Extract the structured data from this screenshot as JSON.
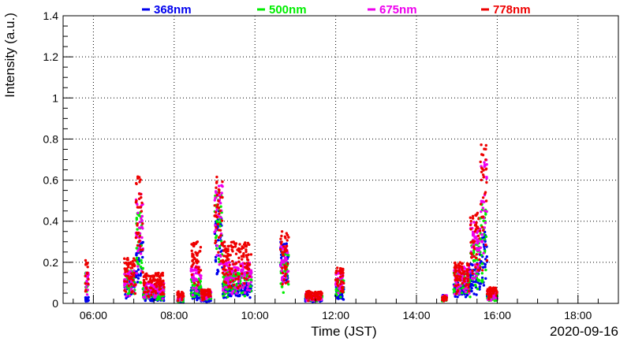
{
  "chart_data": {
    "type": "scatter",
    "title": "",
    "xlabel": "Time (JST)",
    "ylabel": "Intensity (a.u.)",
    "date_label": "2020-09-16",
    "xlim": [
      "05:15",
      "19:00"
    ],
    "ylim": [
      0,
      1.4
    ],
    "x_ticks": [
      "06:00",
      "08:00",
      "10:00",
      "12:00",
      "14:00",
      "16:00",
      "18:00"
    ],
    "y_ticks": [
      "0",
      "0.2",
      "0.4",
      "0.6",
      "0.8",
      "1",
      "1.2",
      "1.4"
    ],
    "grid": true,
    "legend_position": "top",
    "series": [
      {
        "name": "368nm",
        "color": "#0000ee"
      },
      {
        "name": "500nm",
        "color": "#00ee00"
      },
      {
        "name": "675nm",
        "color": "#ee00ee"
      },
      {
        "name": "778nm",
        "color": "#ee0000"
      }
    ],
    "clusters": [
      {
        "start": "05:48",
        "end": "05:53",
        "values": [
          0.03,
          0.15,
          0.15,
          0.21
        ]
      },
      {
        "start": "06:46",
        "end": "07:03",
        "values": [
          0.12,
          0.16,
          0.16,
          0.22
        ]
      },
      {
        "start": "07:03",
        "end": "07:14",
        "values": [
          0.3,
          0.45,
          0.55,
          0.62
        ]
      },
      {
        "start": "07:14",
        "end": "07:45",
        "values": [
          0.05,
          0.08,
          0.1,
          0.15
        ]
      },
      {
        "start": "08:05",
        "end": "08:14",
        "values": [
          0.02,
          0.03,
          0.04,
          0.06
        ]
      },
      {
        "start": "08:25",
        "end": "08:40",
        "values": [
          0.08,
          0.12,
          0.18,
          0.3
        ]
      },
      {
        "start": "08:40",
        "end": "08:55",
        "values": [
          0.03,
          0.05,
          0.06,
          0.07
        ]
      },
      {
        "start": "09:00",
        "end": "09:12",
        "values": [
          0.45,
          0.55,
          0.58,
          0.62
        ]
      },
      {
        "start": "09:12",
        "end": "09:55",
        "values": [
          0.1,
          0.15,
          0.2,
          0.3
        ]
      },
      {
        "start": "10:38",
        "end": "10:50",
        "values": [
          0.3,
          0.25,
          0.28,
          0.35
        ]
      },
      {
        "start": "11:15",
        "end": "11:40",
        "values": [
          0.03,
          0.04,
          0.05,
          0.06
        ]
      },
      {
        "start": "12:00",
        "end": "12:12",
        "values": [
          0.08,
          0.12,
          0.15,
          0.18
        ]
      },
      {
        "start": "14:38",
        "end": "14:45",
        "values": [
          0.04,
          0.03,
          0.04,
          0.04
        ]
      },
      {
        "start": "14:55",
        "end": "15:20",
        "values": [
          0.1,
          0.15,
          0.18,
          0.2
        ]
      },
      {
        "start": "15:20",
        "end": "15:35",
        "values": [
          0.2,
          0.3,
          0.4,
          0.45
        ]
      },
      {
        "start": "15:35",
        "end": "15:45",
        "values": [
          0.35,
          0.5,
          0.7,
          0.78
        ]
      },
      {
        "start": "15:45",
        "end": "16:00",
        "values": [
          0.05,
          0.05,
          0.06,
          0.08
        ]
      }
    ]
  }
}
